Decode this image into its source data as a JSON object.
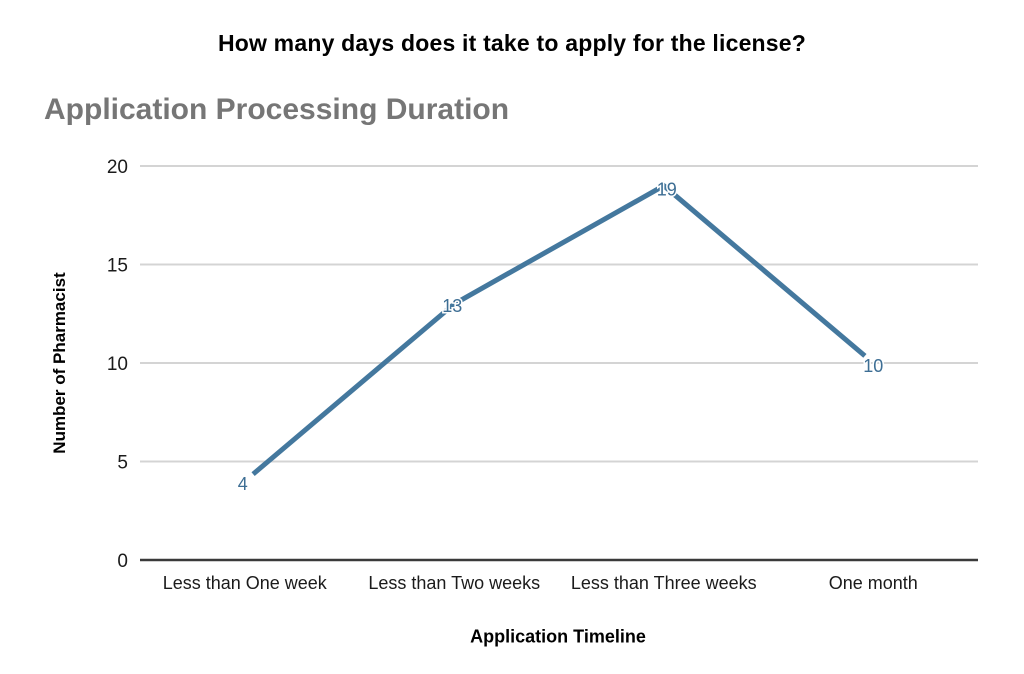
{
  "page": {
    "title": "How many days does it take to apply for the license?"
  },
  "chart_data": {
    "type": "line",
    "title": "Application Processing Duration",
    "categories": [
      "Less than One week",
      "Less than Two weeks",
      "Less than Three weeks",
      "One month"
    ],
    "values": [
      4,
      13,
      19,
      10
    ],
    "data_labels": [
      4,
      13,
      19,
      10
    ],
    "xlabel": "Application Timeline",
    "ylabel": "Number of Pharmacist",
    "ylim": [
      0,
      20
    ],
    "yticks": [
      0,
      5,
      10,
      15,
      20
    ],
    "grid": true,
    "legend": "none",
    "colors": {
      "line": "#44789E",
      "point_label": "#3D6E94",
      "grid": "#D4D4D4",
      "axis": "#3A3A3A",
      "tick_text": "#1B1B1B",
      "chart_title": "#767676",
      "page_title": "#000000"
    }
  }
}
